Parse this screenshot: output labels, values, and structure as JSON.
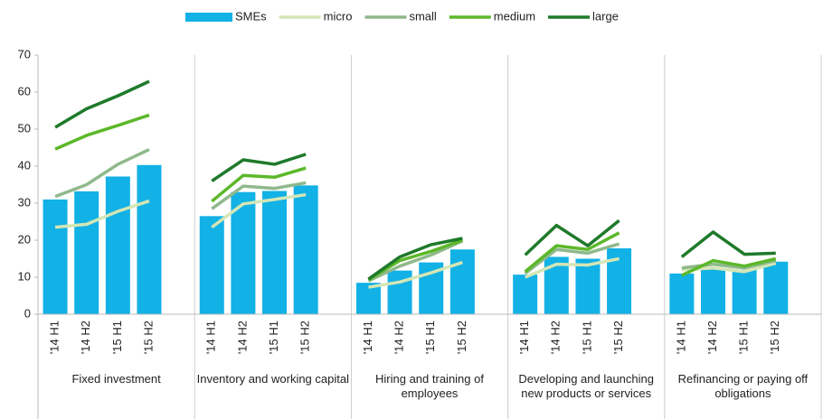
{
  "chart_data": {
    "type": "bar",
    "groups": [
      "Fixed investment",
      "Inventory and working capital",
      "Hiring and training of employees",
      "Developing and launching new products or services",
      "Refinancing or paying off obligations"
    ],
    "categories": [
      "'14 H1",
      "'14 H2",
      "'15 H1",
      "'15 H2",
      "'14 H1",
      "'14 H2",
      "'15 H1",
      "'15 H2",
      "'14 H1",
      "'14 H2",
      "'15 H1",
      "'15 H2",
      "'14 H1",
      "'14 H2",
      "'15 H1",
      "'15 H2",
      "'14 H1",
      "'14 H2",
      "'15 H1",
      "'15 H2"
    ],
    "series": [
      {
        "name": "SMEs",
        "type": "bar",
        "color": "#12b1e6",
        "values": [
          31,
          33.2,
          37.2,
          40.3,
          26.5,
          33,
          33.3,
          34.8,
          8.5,
          11.8,
          14,
          17.5,
          10.7,
          15.5,
          15,
          17.8,
          11,
          12.5,
          12,
          14.2
        ]
      },
      {
        "name": "micro",
        "type": "line",
        "color": "#d4e6b5",
        "values": [
          23.5,
          24.3,
          27.8,
          30.6,
          23.5,
          29.8,
          31,
          32.3,
          7.3,
          8.7,
          11.2,
          14,
          10,
          13.5,
          13.3,
          15,
          12,
          12.5,
          11.5,
          13.8
        ]
      },
      {
        "name": "small",
        "type": "line",
        "color": "#8fb98b",
        "values": [
          31.8,
          35,
          40.5,
          44.5,
          28.5,
          34.6,
          34,
          35.5,
          9,
          13,
          16,
          19.8,
          11,
          17.5,
          16.5,
          19,
          12.5,
          13.5,
          12.5,
          14.5
        ]
      },
      {
        "name": "medium",
        "type": "line",
        "color": "#5cb82a",
        "values": [
          44.6,
          48.3,
          51,
          53.8,
          30.5,
          37.5,
          37,
          39.5,
          9.3,
          14.5,
          17,
          20,
          11.5,
          18.5,
          17.5,
          22,
          10.5,
          14.5,
          13,
          15
        ]
      },
      {
        "name": "large",
        "type": "line",
        "color": "#1e7a2a",
        "values": [
          50.5,
          55.5,
          59,
          62.9,
          36,
          41.7,
          40.5,
          43.2,
          9.5,
          15.5,
          18.8,
          20.5,
          16,
          24,
          18.5,
          25.3,
          15.5,
          22.2,
          16.2,
          16.5
        ]
      }
    ],
    "ylim": [
      0,
      70
    ],
    "yticks": [
      0,
      10,
      20,
      30,
      40,
      50,
      60,
      70
    ],
    "grid": false
  }
}
